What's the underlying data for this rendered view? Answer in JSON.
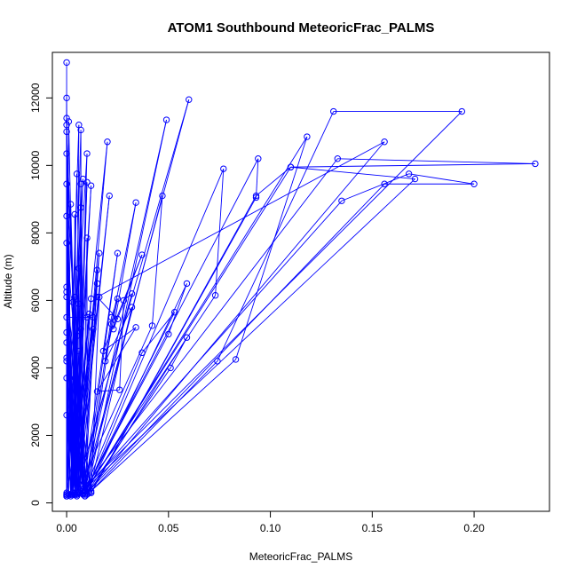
{
  "chart_data": {
    "type": "line",
    "title": "ATOM1 Southbound MeteoricFrac_PALMS",
    "xlabel": "MeteoricFrac_PALMS",
    "ylabel": "Altitude (m)",
    "xlim": [
      -0.007,
      0.237
    ],
    "ylim": [
      -250,
      13350
    ],
    "xticks": [
      "0.00",
      "0.05",
      "0.10",
      "0.15",
      "0.20"
    ],
    "xtick_values": [
      0,
      0.05,
      0.1,
      0.15,
      0.2
    ],
    "yticks": [
      "0",
      "2000",
      "4000",
      "6000",
      "8000",
      "10000",
      "12000"
    ],
    "ytick_values": [
      0,
      2000,
      4000,
      6000,
      8000,
      10000,
      12000
    ],
    "grid": false,
    "legend": "none",
    "series_color": "#0000ff",
    "points": [
      [
        0.0,
        13050
      ],
      [
        0.0,
        200
      ],
      [
        0.0,
        12000
      ],
      [
        0.001,
        250
      ],
      [
        0.0,
        11400
      ],
      [
        0.003,
        250
      ],
      [
        0.0,
        11200
      ],
      [
        0.0,
        300
      ],
      [
        0.001,
        11300
      ],
      [
        0.005,
        200
      ],
      [
        0.006,
        11200
      ],
      [
        0.0,
        250
      ],
      [
        0.0,
        11000
      ],
      [
        0.007,
        300
      ],
      [
        0.007,
        11050
      ],
      [
        0.002,
        200
      ],
      [
        0.02,
        10700
      ],
      [
        0.005,
        250
      ],
      [
        0.01,
        10350
      ],
      [
        0.0,
        200
      ],
      [
        0.0,
        10350
      ],
      [
        0.008,
        400
      ],
      [
        0.005,
        9750
      ],
      [
        0.002,
        250
      ],
      [
        0.008,
        9600
      ],
      [
        0.0,
        250
      ],
      [
        0.0,
        9450
      ],
      [
        0.009,
        200
      ],
      [
        0.007,
        9450
      ],
      [
        0.003,
        300
      ],
      [
        0.012,
        9400
      ],
      [
        0.004,
        250
      ],
      [
        0.01,
        9500
      ],
      [
        0.005,
        250
      ],
      [
        0.021,
        9100
      ],
      [
        0.006,
        300
      ],
      [
        0.002,
        8850
      ],
      [
        0.0,
        200
      ],
      [
        0.0,
        8500
      ],
      [
        0.004,
        250
      ],
      [
        0.004,
        8550
      ],
      [
        0.006,
        300
      ],
      [
        0.007,
        8750
      ],
      [
        0.008,
        500
      ],
      [
        0.01,
        7850
      ],
      [
        0.01,
        250
      ],
      [
        0.0,
        7700
      ],
      [
        0.004,
        300
      ],
      [
        0.016,
        7400
      ],
      [
        0.008,
        400
      ],
      [
        0.025,
        7400
      ],
      [
        0.009,
        350
      ],
      [
        0.015,
        6900
      ],
      [
        0.006,
        300
      ],
      [
        0.006,
        6950
      ],
      [
        0.002,
        250
      ],
      [
        0.015,
        6500
      ],
      [
        0.008,
        300
      ],
      [
        0.0,
        6400
      ],
      [
        0.004,
        250
      ],
      [
        0.0,
        6250
      ],
      [
        0.005,
        300
      ],
      [
        0.004,
        6100
      ],
      [
        0.0,
        250
      ],
      [
        0.016,
        6100
      ],
      [
        0.012,
        300
      ],
      [
        0.0,
        6100
      ],
      [
        0.003,
        250
      ],
      [
        0.012,
        6050
      ],
      [
        0.006,
        300
      ],
      [
        0.003,
        5950
      ],
      [
        0.008,
        250
      ],
      [
        0.006,
        5900
      ],
      [
        0.002,
        250
      ],
      [
        0.011,
        5600
      ],
      [
        0.004,
        300
      ],
      [
        0.0,
        5500
      ],
      [
        0.01,
        5500
      ],
      [
        0.013,
        5500
      ],
      [
        0.004,
        250
      ],
      [
        0.007,
        5150
      ],
      [
        0.003,
        300
      ],
      [
        0.0,
        5050
      ],
      [
        0.005,
        250
      ],
      [
        0.013,
        5150
      ],
      [
        0.004,
        300
      ],
      [
        0.005,
        4950
      ],
      [
        0.003,
        250
      ],
      [
        0.0,
        4750
      ],
      [
        0.006,
        300
      ],
      [
        0.006,
        4500
      ],
      [
        0.002,
        250
      ],
      [
        0.0,
        4300
      ],
      [
        0.004,
        300
      ],
      [
        0.0,
        4200
      ],
      [
        0.0,
        250
      ],
      [
        0.004,
        3700
      ],
      [
        0.003,
        300
      ],
      [
        0.0,
        3700
      ],
      [
        0.002,
        250
      ],
      [
        0.0,
        2600
      ],
      [
        0.0,
        250
      ],
      [
        0.0,
        200
      ],
      [
        0.004,
        250
      ],
      [
        0.009,
        200
      ],
      [
        0.004,
        250
      ],
      [
        0.06,
        11950
      ],
      [
        0.008,
        350
      ],
      [
        0.049,
        11350
      ],
      [
        0.01,
        300
      ],
      [
        0.022,
        5300
      ],
      [
        0.034,
        8900
      ],
      [
        0.023,
        5150
      ],
      [
        0.037,
        7350
      ],
      [
        0.018,
        4500
      ],
      [
        0.034,
        5200
      ],
      [
        0.015,
        3300
      ],
      [
        0.026,
        3350
      ],
      [
        0.028,
        6000
      ],
      [
        0.032,
        6200
      ],
      [
        0.005,
        300
      ],
      [
        0.042,
        5250
      ],
      [
        0.047,
        9100
      ],
      [
        0.009,
        400
      ],
      [
        0.037,
        4450
      ],
      [
        0.053,
        5650
      ],
      [
        0.009,
        350
      ],
      [
        0.05,
        5000
      ],
      [
        0.059,
        6500
      ],
      [
        0.01,
        300
      ],
      [
        0.051,
        4000
      ],
      [
        0.059,
        4900
      ],
      [
        0.011,
        300
      ],
      [
        0.032,
        5800
      ],
      [
        0.019,
        4200
      ],
      [
        0.025,
        6050
      ],
      [
        0.022,
        5500
      ],
      [
        0.009,
        250
      ],
      [
        0.077,
        9900
      ],
      [
        0.073,
        6150
      ],
      [
        0.009,
        350
      ],
      [
        0.094,
        10200
      ],
      [
        0.093,
        9050
      ],
      [
        0.012,
        300
      ],
      [
        0.093,
        9100
      ],
      [
        0.11,
        9950
      ],
      [
        0.01,
        400
      ],
      [
        0.118,
        10850
      ],
      [
        0.083,
        4250
      ],
      [
        0.012,
        350
      ],
      [
        0.074,
        4200
      ],
      [
        0.131,
        11600
      ],
      [
        0.194,
        11600
      ],
      [
        0.008,
        400
      ],
      [
        0.133,
        10200
      ],
      [
        0.23,
        10050
      ],
      [
        0.11,
        9950
      ],
      [
        0.171,
        9600
      ],
      [
        0.008,
        350
      ],
      [
        0.135,
        8950
      ],
      [
        0.168,
        9750
      ],
      [
        0.2,
        9450
      ],
      [
        0.156,
        9450
      ],
      [
        0.01,
        300
      ],
      [
        0.156,
        10700
      ],
      [
        0.015,
        6100
      ],
      [
        0.025,
        5450
      ]
    ]
  }
}
